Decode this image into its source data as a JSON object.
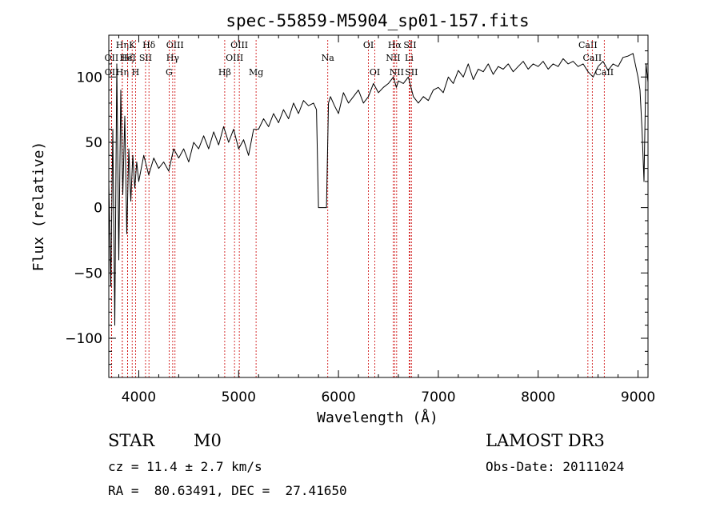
{
  "chart_data": {
    "type": "line",
    "title": "spec-55859-M5904_sp01-157.fits",
    "xlabel": "Wavelength (Å)",
    "ylabel": "Flux (relative)",
    "xlim": [
      3700,
      9100
    ],
    "ylim": [
      -130,
      132
    ],
    "x_ticks": [
      4000,
      5000,
      6000,
      7000,
      8000,
      9000
    ],
    "y_ticks": [
      -100,
      -50,
      0,
      50,
      100
    ],
    "grid": false,
    "series": [
      {
        "name": "flux",
        "x": [
          3700,
          3720,
          3740,
          3760,
          3780,
          3800,
          3820,
          3840,
          3860,
          3880,
          3900,
          3920,
          3940,
          3960,
          3980,
          4000,
          4050,
          4100,
          4150,
          4200,
          4250,
          4300,
          4350,
          4400,
          4450,
          4500,
          4550,
          4600,
          4650,
          4700,
          4750,
          4800,
          4850,
          4900,
          4950,
          5000,
          5050,
          5100,
          5150,
          5200,
          5250,
          5300,
          5350,
          5400,
          5450,
          5500,
          5550,
          5600,
          5650,
          5700,
          5750,
          5780,
          5800,
          5820,
          5850,
          5880,
          5900,
          5920,
          5960,
          6000,
          6050,
          6100,
          6150,
          6200,
          6250,
          6300,
          6350,
          6400,
          6450,
          6500,
          6550,
          6580,
          6600,
          6650,
          6700,
          6750,
          6800,
          6850,
          6900,
          6950,
          7000,
          7050,
          7100,
          7150,
          7200,
          7250,
          7300,
          7350,
          7400,
          7450,
          7500,
          7550,
          7600,
          7650,
          7700,
          7750,
          7800,
          7850,
          7900,
          7950,
          8000,
          8050,
          8100,
          8150,
          8200,
          8250,
          8300,
          8350,
          8400,
          8450,
          8500,
          8550,
          8600,
          8650,
          8700,
          8750,
          8800,
          8850,
          8900,
          8950,
          9000,
          9020,
          9040,
          9060,
          9080,
          9100
        ],
        "y": [
          20,
          -60,
          60,
          -90,
          110,
          -40,
          90,
          10,
          70,
          -20,
          45,
          5,
          40,
          15,
          35,
          20,
          40,
          25,
          38,
          30,
          35,
          28,
          45,
          38,
          45,
          35,
          50,
          45,
          55,
          45,
          58,
          48,
          62,
          50,
          60,
          45,
          52,
          40,
          60,
          60,
          68,
          62,
          72,
          65,
          75,
          68,
          80,
          72,
          82,
          78,
          80,
          75,
          0,
          0,
          0,
          0,
          80,
          85,
          78,
          72,
          88,
          80,
          85,
          90,
          80,
          85,
          95,
          88,
          92,
          95,
          100,
          92,
          97,
          95,
          100,
          85,
          80,
          85,
          82,
          90,
          92,
          88,
          100,
          95,
          105,
          100,
          110,
          98,
          106,
          104,
          110,
          102,
          108,
          106,
          110,
          104,
          108,
          112,
          106,
          110,
          108,
          112,
          106,
          110,
          108,
          114,
          110,
          112,
          108,
          110,
          104,
          100,
          108,
          112,
          105,
          110,
          108,
          115,
          116,
          118,
          100,
          90,
          60,
          20,
          110,
          96
        ]
      }
    ],
    "spectral_lines": [
      {
        "label": "Hη",
        "wavelength": 3835,
        "row": 0
      },
      {
        "label": "OII",
        "wavelength": 3727,
        "row": 1
      },
      {
        "label": "OII",
        "wavelength": 3729,
        "row": 2
      },
      {
        "label": "Hζ",
        "wavelength": 3889,
        "row": 1
      },
      {
        "label": "Hη",
        "wavelength": 3835,
        "row": 2
      },
      {
        "label": "K",
        "wavelength": 3934,
        "row": 0
      },
      {
        "label": "HeI",
        "wavelength": 3889,
        "row": 1
      },
      {
        "label": "H",
        "wavelength": 3968,
        "row": 2
      },
      {
        "label": "Hδ",
        "wavelength": 4102,
        "row": 0
      },
      {
        "label": "SII",
        "wavelength": 4068,
        "row": 1
      },
      {
        "label": "OIII",
        "wavelength": 4363,
        "row": 0
      },
      {
        "label": "Hγ",
        "wavelength": 4340,
        "row": 1
      },
      {
        "label": "G",
        "wavelength": 4304,
        "row": 2
      },
      {
        "label": "Hβ",
        "wavelength": 4861,
        "row": 2
      },
      {
        "label": "OIII",
        "wavelength": 4959,
        "row": 1
      },
      {
        "label": "OIII",
        "wavelength": 5007,
        "row": 0
      },
      {
        "label": "Mg",
        "wavelength": 5175,
        "row": 2
      },
      {
        "label": "Na",
        "wavelength": 5893,
        "row": 1
      },
      {
        "label": "OI",
        "wavelength": 6300,
        "row": 0
      },
      {
        "label": "OI",
        "wavelength": 6364,
        "row": 2
      },
      {
        "label": "NII",
        "wavelength": 6548,
        "row": 1
      },
      {
        "label": "Hα",
        "wavelength": 6563,
        "row": 0
      },
      {
        "label": "NII",
        "wavelength": 6583,
        "row": 2
      },
      {
        "label": "SII",
        "wavelength": 6716,
        "row": 0
      },
      {
        "label": "Li",
        "wavelength": 6708,
        "row": 1
      },
      {
        "label": "SII",
        "wavelength": 6731,
        "row": 2
      },
      {
        "label": "CaII",
        "wavelength": 8498,
        "row": 0
      },
      {
        "label": "CaII",
        "wavelength": 8542,
        "row": 1
      },
      {
        "label": "CaII",
        "wavelength": 8662,
        "row": 2
      }
    ],
    "line_color": "#cc0000"
  },
  "info": {
    "class": "STAR",
    "subclass": "M0",
    "survey": "LAMOST DR3",
    "cz": "cz = 11.4 ± 2.7 km/s",
    "obs_date": "Obs-Date: 20111024",
    "radec": "RA =  80.63491, DEC =  27.41650"
  }
}
